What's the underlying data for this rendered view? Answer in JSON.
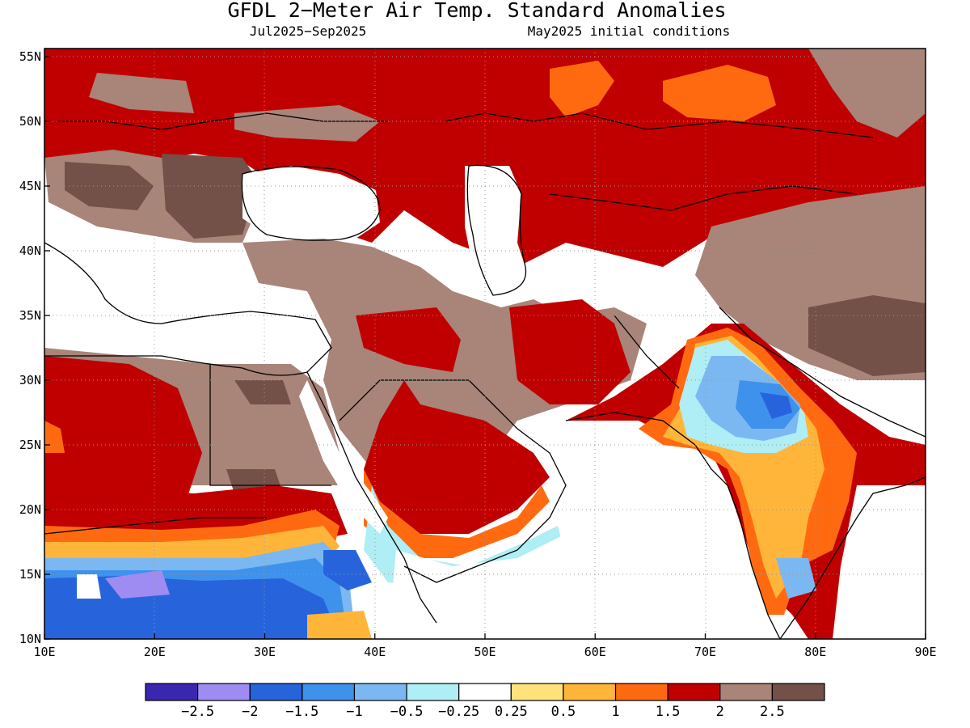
{
  "title": "GFDL 2−Meter Air Temp. Standard Anomalies",
  "subtitle_left": "Jul2025−Sep2025",
  "subtitle_right": "May2025 initial conditions",
  "lon_labels": [
    "10E",
    "20E",
    "30E",
    "40E",
    "50E",
    "60E",
    "70E",
    "80E",
    "90E"
  ],
  "lat_labels": [
    "10N",
    "15N",
    "20N",
    "25N",
    "30N",
    "35N",
    "40N",
    "45N",
    "50N",
    "55N"
  ],
  "colorbar": {
    "colors": [
      "#3a27b0",
      "#9e8cf2",
      "#2764dc",
      "#3e92ec",
      "#7bb8f2",
      "#aeeef4",
      "#ffffff",
      "#ffe27a",
      "#ffb53a",
      "#ff6a10",
      "#c00000",
      "#a88479",
      "#735048"
    ],
    "labels": [
      "−2.5",
      "−2",
      "−1.5",
      "−1",
      "−0.5",
      "−0.25",
      "0.25",
      "0.5",
      "1",
      "1.5",
      "2",
      "2.5"
    ]
  }
}
